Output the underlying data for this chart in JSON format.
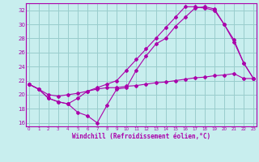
{
  "xlabel": "Windchill (Refroidissement éolien,°C)",
  "bg_color": "#c8eeee",
  "line_color": "#aa00aa",
  "grid_color": "#99cccc",
  "xlim": [
    -0.3,
    23.3
  ],
  "ylim": [
    15.5,
    33.0
  ],
  "xticks": [
    0,
    1,
    2,
    3,
    4,
    5,
    6,
    7,
    8,
    9,
    10,
    11,
    12,
    13,
    14,
    15,
    16,
    17,
    18,
    19,
    20,
    21,
    22,
    23
  ],
  "yticks": [
    16,
    18,
    20,
    22,
    24,
    26,
    28,
    30,
    32
  ],
  "line1": {
    "x": [
      0,
      1,
      2,
      3,
      4,
      5,
      6,
      7,
      8,
      9,
      10,
      11,
      12,
      13,
      14,
      15,
      16,
      17,
      18,
      19,
      20,
      21,
      22,
      23
    ],
    "y": [
      21.5,
      20.8,
      19.5,
      19.0,
      18.7,
      17.5,
      17.0,
      16.0,
      18.5,
      20.8,
      21.0,
      23.5,
      25.5,
      27.2,
      28.0,
      29.7,
      31.0,
      32.3,
      32.5,
      32.2,
      30.0,
      27.5,
      24.5,
      22.3
    ]
  },
  "line2": {
    "x": [
      0,
      1,
      2,
      3,
      4,
      5,
      6,
      7,
      8,
      9,
      10,
      11,
      12,
      13,
      14,
      15,
      16,
      17,
      18,
      19,
      20,
      21,
      22,
      23
    ],
    "y": [
      21.5,
      20.8,
      20.0,
      19.8,
      20.0,
      20.2,
      20.5,
      20.8,
      21.0,
      21.0,
      21.2,
      21.3,
      21.5,
      21.7,
      21.8,
      22.0,
      22.2,
      22.4,
      22.5,
      22.7,
      22.8,
      23.0,
      22.3,
      22.3
    ]
  },
  "line3": {
    "x": [
      0,
      1,
      2,
      3,
      4,
      5,
      6,
      7,
      8,
      9,
      10,
      11,
      12,
      13,
      14,
      15,
      16,
      17,
      18,
      19,
      20,
      21,
      22,
      23
    ],
    "y": [
      21.5,
      20.8,
      19.5,
      19.0,
      18.7,
      19.5,
      20.5,
      21.0,
      21.5,
      22.0,
      23.5,
      25.0,
      26.5,
      28.0,
      29.5,
      31.0,
      32.5,
      32.5,
      32.3,
      32.0,
      30.0,
      27.8,
      24.5,
      22.3
    ]
  }
}
